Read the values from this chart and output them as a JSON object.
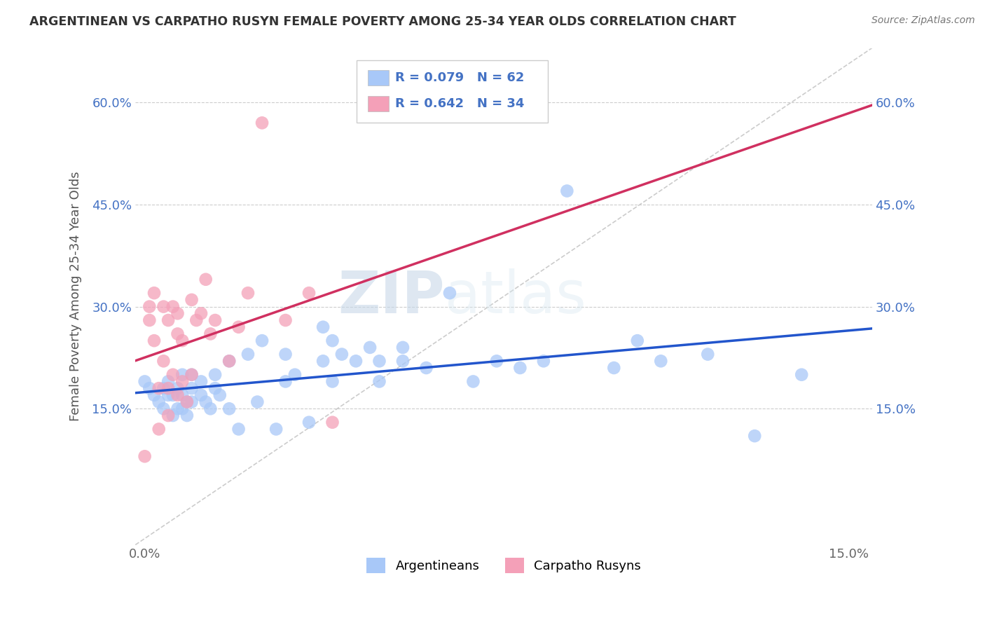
{
  "title": "ARGENTINEAN VS CARPATHO RUSYN FEMALE POVERTY AMONG 25-34 YEAR OLDS CORRELATION CHART",
  "source": "Source: ZipAtlas.com",
  "ylabel": "Female Poverty Among 25-34 Year Olds",
  "xlabel": "",
  "xlim": [
    -0.002,
    0.155
  ],
  "ylim": [
    -0.05,
    0.68
  ],
  "yticks": [
    0.15,
    0.3,
    0.45,
    0.6
  ],
  "ytick_labels": [
    "15.0%",
    "30.0%",
    "45.0%",
    "60.0%"
  ],
  "xticks": [
    0.0,
    0.15
  ],
  "xtick_labels": [
    "0.0%",
    "15.0%"
  ],
  "r_argentinean": 0.079,
  "n_argentinean": 62,
  "r_carpatho": 0.642,
  "n_carpatho": 34,
  "color_argentinean": "#a8c8f8",
  "color_carpatho": "#f4a0b8",
  "line_color_argentinean": "#2255cc",
  "line_color_carpatho": "#d03060",
  "watermark_zip": "ZIP",
  "watermark_atlas": "atlas",
  "legend_labels": [
    "Argentineans",
    "Carpatho Rusyns"
  ],
  "argentinean_x": [
    0.0,
    0.001,
    0.002,
    0.003,
    0.004,
    0.004,
    0.005,
    0.005,
    0.006,
    0.006,
    0.007,
    0.007,
    0.008,
    0.008,
    0.008,
    0.009,
    0.009,
    0.01,
    0.01,
    0.01,
    0.012,
    0.012,
    0.013,
    0.014,
    0.015,
    0.015,
    0.016,
    0.018,
    0.018,
    0.02,
    0.022,
    0.024,
    0.025,
    0.028,
    0.03,
    0.03,
    0.032,
    0.035,
    0.038,
    0.038,
    0.04,
    0.04,
    0.042,
    0.045,
    0.048,
    0.05,
    0.05,
    0.055,
    0.055,
    0.06,
    0.065,
    0.07,
    0.075,
    0.08,
    0.085,
    0.09,
    0.1,
    0.105,
    0.11,
    0.12,
    0.13,
    0.14
  ],
  "argentinean_y": [
    0.19,
    0.18,
    0.17,
    0.16,
    0.15,
    0.18,
    0.17,
    0.19,
    0.14,
    0.17,
    0.15,
    0.18,
    0.15,
    0.17,
    0.2,
    0.14,
    0.16,
    0.16,
    0.18,
    0.2,
    0.17,
    0.19,
    0.16,
    0.15,
    0.18,
    0.2,
    0.17,
    0.15,
    0.22,
    0.12,
    0.23,
    0.16,
    0.25,
    0.12,
    0.19,
    0.23,
    0.2,
    0.13,
    0.22,
    0.27,
    0.19,
    0.25,
    0.23,
    0.22,
    0.24,
    0.19,
    0.22,
    0.22,
    0.24,
    0.21,
    0.32,
    0.19,
    0.22,
    0.21,
    0.22,
    0.47,
    0.21,
    0.25,
    0.22,
    0.23,
    0.11,
    0.2
  ],
  "carpatho_x": [
    0.0,
    0.001,
    0.001,
    0.002,
    0.002,
    0.003,
    0.003,
    0.004,
    0.004,
    0.005,
    0.005,
    0.005,
    0.006,
    0.006,
    0.007,
    0.007,
    0.007,
    0.008,
    0.008,
    0.009,
    0.01,
    0.01,
    0.011,
    0.012,
    0.013,
    0.014,
    0.015,
    0.018,
    0.02,
    0.022,
    0.025,
    0.03,
    0.035,
    0.04
  ],
  "carpatho_y": [
    0.08,
    0.28,
    0.3,
    0.25,
    0.32,
    0.12,
    0.18,
    0.22,
    0.3,
    0.14,
    0.18,
    0.28,
    0.2,
    0.3,
    0.17,
    0.26,
    0.29,
    0.19,
    0.25,
    0.16,
    0.2,
    0.31,
    0.28,
    0.29,
    0.34,
    0.26,
    0.28,
    0.22,
    0.27,
    0.32,
    0.57,
    0.28,
    0.32,
    0.13
  ]
}
